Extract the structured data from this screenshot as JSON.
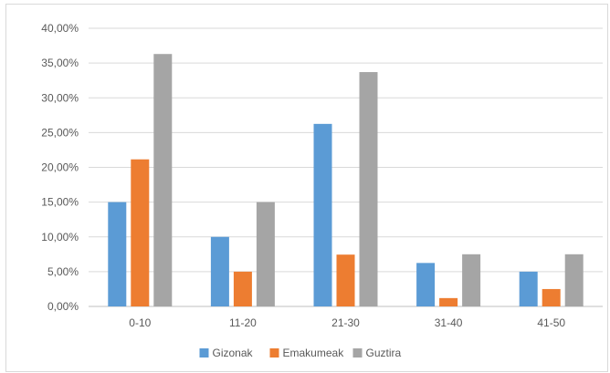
{
  "chart_data": {
    "type": "bar",
    "categories": [
      "0-10",
      "11-20",
      "21-30",
      "31-40",
      "41-50"
    ],
    "series": [
      {
        "name": "Gizonak",
        "color": "#5b9bd5",
        "values": [
          0.15,
          0.1,
          0.2625,
          0.0625,
          0.05
        ]
      },
      {
        "name": "Emakumeak",
        "color": "#ed7d31",
        "values": [
          0.2115,
          0.05,
          0.0745,
          0.012,
          0.025
        ]
      },
      {
        "name": "Guztira",
        "color": "#a5a5a5",
        "values": [
          0.363,
          0.15,
          0.337,
          0.075,
          0.075
        ]
      }
    ],
    "ylim": [
      0,
      0.4
    ],
    "yticks": [
      {
        "value": 0.0,
        "label": "0,00%"
      },
      {
        "value": 0.05,
        "label": "5,00%"
      },
      {
        "value": 0.1,
        "label": "10,00%"
      },
      {
        "value": 0.15,
        "label": "15,00%"
      },
      {
        "value": 0.2,
        "label": "20,00%"
      },
      {
        "value": 0.25,
        "label": "25,00%"
      },
      {
        "value": 0.3,
        "label": "30,00%"
      },
      {
        "value": 0.35,
        "label": "35,00%"
      },
      {
        "value": 0.4,
        "label": "40,00%"
      }
    ],
    "grid": true,
    "legend_position": "bottom",
    "gridline_color": "#d9d9d9",
    "axis_color": "#bfbfbf"
  }
}
